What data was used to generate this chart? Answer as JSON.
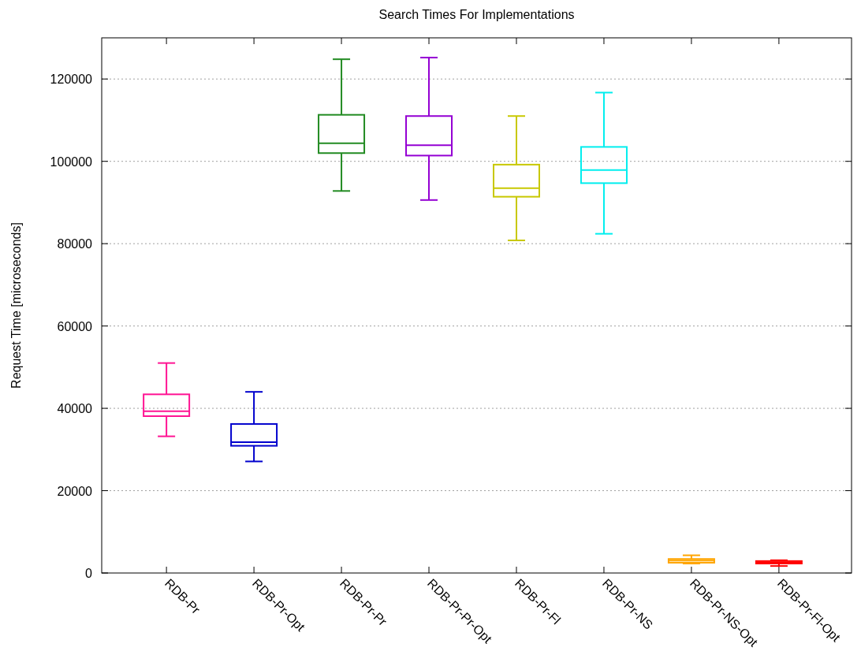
{
  "chart_data": {
    "type": "box",
    "title": "Search Times For Implementations",
    "ylabel": "Request Time [microseconds]",
    "categories": [
      "RDB-Pr",
      "RDB-Pr-Opt",
      "RDB-Pr-Pr",
      "RDB-Pr-Pr-Opt",
      "RDB-Pr-Fl",
      "RDB-Pr-NS",
      "RDB-Pr-NS-Opt",
      "RDB-Pr-Fl-Opt"
    ],
    "colors": [
      "#ff1493",
      "#0000cd",
      "#228b22",
      "#9400d3",
      "#c8c800",
      "#00eeee",
      "#ffa500",
      "#ff0000"
    ],
    "boxes": [
      {
        "low": 33200,
        "q1": 38100,
        "median": 39300,
        "q3": 43400,
        "high": 51000
      },
      {
        "low": 27100,
        "q1": 30900,
        "median": 31800,
        "q3": 36200,
        "high": 44000
      },
      {
        "low": 92800,
        "q1": 102000,
        "median": 104400,
        "q3": 111300,
        "high": 124800
      },
      {
        "low": 90600,
        "q1": 101400,
        "median": 103900,
        "q3": 111000,
        "high": 125200
      },
      {
        "low": 80800,
        "q1": 91400,
        "median": 93500,
        "q3": 99200,
        "high": 111000
      },
      {
        "low": 82400,
        "q1": 94700,
        "median": 97900,
        "q3": 103500,
        "high": 116700
      },
      {
        "low": 2300,
        "q1": 2500,
        "median": 3000,
        "q3": 3400,
        "high": 4300
      },
      {
        "low": 1700,
        "q1": 2300,
        "median": 2600,
        "q3": 2900,
        "high": 3100
      }
    ],
    "ylim": [
      0,
      130000
    ],
    "yticks": [
      0,
      20000,
      40000,
      60000,
      80000,
      100000,
      120000
    ],
    "grid": "y"
  }
}
